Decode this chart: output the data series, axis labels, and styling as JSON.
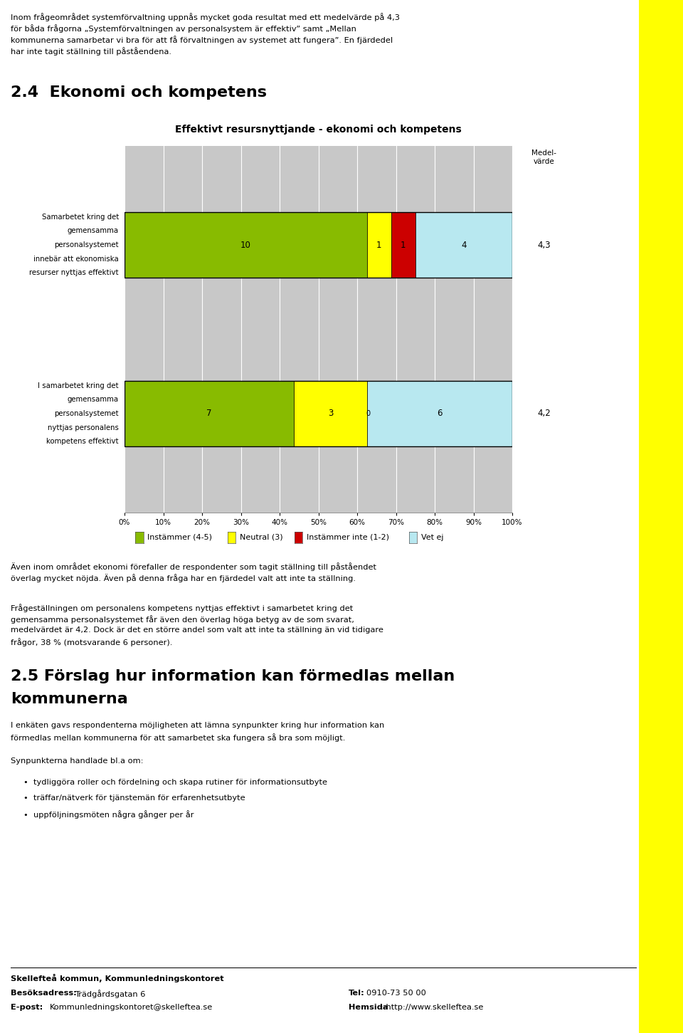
{
  "page_bg": "#ffffff",
  "yellow_stripe_color": "#ffff00",
  "title_section": "2.4  Ekonomi och kompetens",
  "chart_title": "Effektivt resursnyttjande - ekonomi och kompetens",
  "bars": [
    {
      "label_lines": [
        "Samarbetet kring det",
        "gemensamma",
        "personalsystemet",
        "innebär att ekonomiska",
        "resurser nyttjas effektivt"
      ],
      "segments": [
        {
          "pct": 62.5,
          "color": "#88bb00",
          "label": "10"
        },
        {
          "pct": 6.25,
          "color": "#ffff00",
          "label": "1"
        },
        {
          "pct": 6.25,
          "color": "#cc0000",
          "label": "1"
        },
        {
          "pct": 25.0,
          "color": "#b8e8f0",
          "label": "4"
        }
      ],
      "medelvarde": "4,3"
    },
    {
      "label_lines": [
        "I samarbetet kring det",
        "gemensamma",
        "personalsystemet",
        "nyttjas personalens",
        "kompetens effektivt"
      ],
      "segments": [
        {
          "pct": 43.75,
          "color": "#88bb00",
          "label": "7"
        },
        {
          "pct": 18.75,
          "color": "#ffff00",
          "label": "3"
        },
        {
          "pct": 0.0,
          "color": "#cc0000",
          "label": "0"
        },
        {
          "pct": 37.5,
          "color": "#b8e8f0",
          "label": "6"
        }
      ],
      "medelvarde": "4,2"
    }
  ],
  "legend_items": [
    {
      "label": "Instämmer (4-5)",
      "color": "#88bb00"
    },
    {
      "label": "Neutral (3)",
      "color": "#ffff00"
    },
    {
      "label": "Instämmer inte (1-2)",
      "color": "#cc0000"
    },
    {
      "label": "Vet ej",
      "color": "#b8e8f0"
    }
  ],
  "bar_bg_color": "#c8c8c8",
  "intro_lines": [
    "Inom frågeområdet systemförvaltning uppnås mycket goda resultat med ett medelvärde på 4,3",
    "för båda frågorna „Systemförvaltningen av personalsystem är effektiv” samt „Mellan",
    "kommunerna samarbetar vi bra för att få förvaltningen av systemet att fungera”. En fjärdedel",
    "har inte tagit ställning till påståendena."
  ],
  "after_lines1": [
    "Även inom området ekonomi förefaller de respondenter som tagit ställning till påståendet",
    "överlag mycket nöjda. Även på denna fråga har en fjärdedel valt att inte ta ställning."
  ],
  "after_lines2": [
    "Frågeställningen om personalens kompetens nyttjas effektivt i samarbetet kring det",
    "gemensamma personalsystemet får även den överlag höga betyg av de som svarat,",
    "medelvärdet är 4,2. Dock är det en större andel som valt att inte ta ställning än vid tidigare",
    "frågor, 38 % (motsvarande 6 personer)."
  ],
  "sec25_line1": "2.5 Förslag hur information kan förmedlas mellan",
  "sec25_line2": "kommunerna",
  "sec25_intro": [
    "I enkäten gavs respondenterna möjligheten att lämna synpunkter kring hur information kan",
    "förmedlas mellan kommunerna för att samarbetet ska fungera så bra som möjligt."
  ],
  "sec25_sub": "Synpunkterna handlade bl.a om:",
  "bullets": [
    "tydliggöra roller och fördelning och skapa rutiner för informationsutbyte",
    "träffar/nätverk för tjänstemän för erfarenhetsutbyte",
    "uppföljningsmöten några gånger per år"
  ]
}
